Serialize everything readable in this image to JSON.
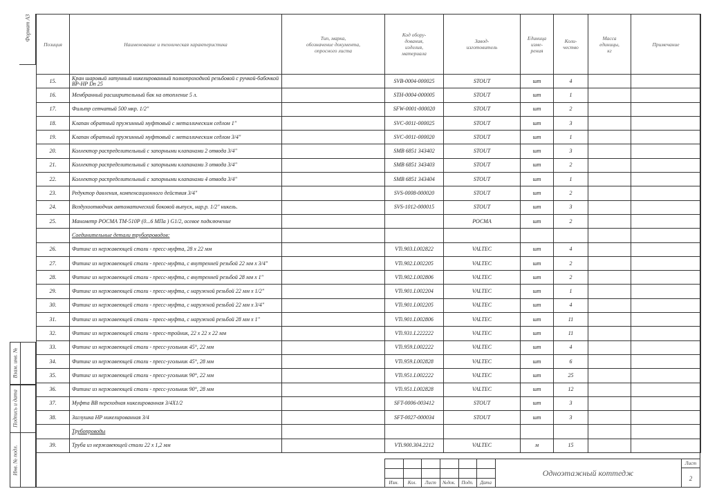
{
  "side": {
    "format": "Формат А3",
    "stamps": [
      "Взам. инв. №",
      "Подпись и дата",
      "Инв. № подл."
    ]
  },
  "header": {
    "columns": [
      "Позиция",
      "Наименование и техническая характеристика",
      "Тип, марка,\nобозначение документа,\nопросного листа",
      "Код обору-\nдования,\nизделия,\nматериала",
      "Завод-\nизготовитель",
      "Единица\nизме-\nрения",
      "Коли-\nчество",
      "Масса\nединицы,\nкг",
      "Примечание"
    ]
  },
  "table": {
    "rows": [
      {
        "pos": "15.",
        "name": "Кран шаровый латунный никелированный полнопроходной резьбовой с ручкой-бабочкой ВР-НР Dn 25",
        "code": "SVB-0004-000025",
        "maker": "STOUT",
        "unit": "шт",
        "qty": 4
      },
      {
        "pos": "16.",
        "name": "Мембранный расширительный бак на отопление 5 л.",
        "code": "STH-0004-000005",
        "maker": "STOUT",
        "unit": "шт",
        "qty": 1
      },
      {
        "pos": "17.",
        "name": "Фильтр сетчатый 500 мкр. 1/2\"",
        "code": "SFW-0001-000020",
        "maker": "STOUT",
        "unit": "шт",
        "qty": 2
      },
      {
        "pos": "18.",
        "name": "Клапан обратный пружинный муфтовый с металлическим седлом 1\"",
        "code": "SVC-0011-000025",
        "maker": "STOUT",
        "unit": "шт",
        "qty": 3
      },
      {
        "pos": "19.",
        "name": "Клапан обратный пружинный муфтовый с металлическим седлом 3/4\"",
        "code": "SVC-0011-000020",
        "maker": "STOUT",
        "unit": "шт",
        "qty": 1
      },
      {
        "pos": "20.",
        "name": "Коллектор распределительный с запорными клапанами 2 отвода 3/4\"",
        "code": "SMB 6851 343402",
        "maker": "STOUT",
        "unit": "шт",
        "qty": 3
      },
      {
        "pos": "21.",
        "name": "Коллектор распределительный с запорными клапанами 3 отвода 3/4\"",
        "code": "SMB 6851 343403",
        "maker": "STOUT",
        "unit": "шт",
        "qty": 2
      },
      {
        "pos": "22.",
        "name": "Коллектор распределительный с запорными клапанами 4 отвода 3/4\"",
        "code": "SMB 6851 343404",
        "maker": "STOUT",
        "unit": "шт",
        "qty": 1
      },
      {
        "pos": "23.",
        "name": "Редуктор давления, компенсационного действия          3/4\"",
        "code": "SVS-0008-000020",
        "maker": "STOUT",
        "unit": "шт",
        "qty": 2
      },
      {
        "pos": "24.",
        "name": "Воздухоотводчик автоматический боковой выпуск, нар.р. 1/2\" никель.",
        "code": "SVS-1012-000015",
        "maker": "STOUT",
        "unit": "шт",
        "qty": 3
      },
      {
        "pos": "25.",
        "name": "Манометр РОСМА ТМ-510Р (0...6 MПa ) G1/2, осевое подключение",
        "maker": "РОСМА",
        "unit": "шт",
        "qty": 2
      },
      {
        "section": "Соединительные детали трубопроводов:"
      },
      {
        "pos": "26.",
        "name": "Фитинг из нержавеющей стали - пресс-муфта, 28 х 22 мм",
        "code": "VTi.903.I.002822",
        "maker": "VALTEC",
        "unit": "шт",
        "qty": 4
      },
      {
        "pos": "27.",
        "name": "Фитинг из нержавеющей стали - пресс-муфта, с внутренней резьбой 22 мм х 3/4\"",
        "code": "VTi.902.I.002205",
        "maker": "VALTEC",
        "unit": "шт",
        "qty": 2
      },
      {
        "pos": "28.",
        "name": "Фитинг из нержавеющей стали - пресс-муфта, с внутренней резьбой 28 мм х 1\"",
        "code": "VTi.902.I.002806",
        "maker": "VALTEC",
        "unit": "шт",
        "qty": 2
      },
      {
        "pos": "29.",
        "name": "Фитинг из нержавеющей стали - пресс-муфта, с наружной резьбой 22 мм х 1/2\"",
        "code": "VTi.901.I.002204",
        "maker": "VALTEC",
        "unit": "шт",
        "qty": 1
      },
      {
        "pos": "30.",
        "name": "Фитинг из нержавеющей стали - пресс-муфта, с наружной резьбой 22 мм х 3/4\"",
        "code": "VTi.901.I.002205",
        "maker": "VALTEC",
        "unit": "шт",
        "qty": 4
      },
      {
        "pos": "31.",
        "name": "Фитинг из нержавеющей стали - пресс-муфта, с наружной резьбой 28 мм х 1\"",
        "code": "VTi.901.I.002806",
        "maker": "VALTEC",
        "unit": "шт",
        "qty": 11
      },
      {
        "pos": "32.",
        "name": "Фитинг из нержавеющей стали - пресс-тройник, 22 х 22 х 22 мм",
        "code": "VTi.931.I.222222",
        "maker": "VALTEC",
        "unit": "шт",
        "qty": 11
      },
      {
        "pos": "33.",
        "name": "Фитинг из нержавеющей стали - пресс-угольник 45°, 22 мм",
        "code": "VTi.959.I.002222",
        "maker": "VALTEC",
        "unit": "шт",
        "qty": 4
      },
      {
        "pos": "34.",
        "name": "Фитинг из нержавеющей стали - пресс-угольник 45°, 28 мм",
        "code": "VTi.959.I.002828",
        "maker": "VALTEC",
        "unit": "шт",
        "qty": 6
      },
      {
        "pos": "35.",
        "name": "Фитинг из нержавеющей стали - пресс-угольник 90°, 22 мм",
        "code": "VTi.951.I.002222",
        "maker": "VALTEC",
        "unit": "шт",
        "qty": 25
      },
      {
        "pos": "36.",
        "name": "Фитинг из нержавеющей стали - пресс-угольник 90°, 28 мм",
        "code": "VTi.951.I.002828",
        "maker": "VALTEC",
        "unit": "шт",
        "qty": 12
      },
      {
        "pos": "37.",
        "name": "Муфта ВВ переходная никелированная 3/4Х1/2",
        "code": "SFT-0006-003412",
        "maker": "STOUT",
        "unit": "шт",
        "qty": 3
      },
      {
        "pos": "38.",
        "name": "Заглушка НР никелированная 3/4",
        "code": "SFT-0027-000034",
        "maker": "STOUT",
        "unit": "шт",
        "qty": 3
      },
      {
        "section": "Трубопроводы"
      },
      {
        "pos": "39.",
        "name": "Труба из нержавеющей стали 22 х 1,2 мм",
        "code": "VTi.900.304.2212",
        "maker": "VALTEC",
        "unit": "м",
        "qty": 15
      }
    ]
  },
  "title_block": {
    "labels": [
      "Изм.",
      "Кол.",
      "Лист",
      "№док.",
      "Подп.",
      "Дата"
    ],
    "title": "Одноэтажный коттедж",
    "sheet_label": "Лист",
    "sheet": 2
  }
}
